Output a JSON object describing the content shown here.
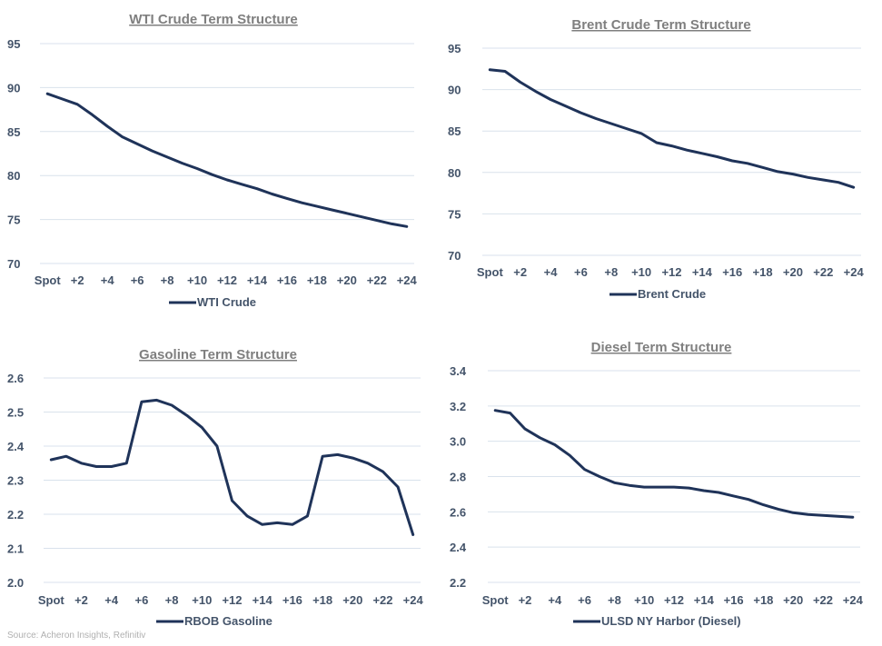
{
  "source": "Source: Acheron Insights, Refinitiv",
  "colors": {
    "line": "#1f3359",
    "grid": "#d9e2ec",
    "title": "#7f7f7f",
    "tick": "#44546a"
  },
  "x_ticks": [
    "Spot",
    "+2",
    "+4",
    "+6",
    "+8",
    "+10",
    "+12",
    "+14",
    "+16",
    "+18",
    "+20",
    "+22",
    "+24"
  ],
  "chart_data": [
    {
      "type": "line",
      "title": "WTI Crude Term Structure",
      "legend": "WTI Crude",
      "legend_position": "bottom",
      "grid": true,
      "ylim": [
        70,
        95
      ],
      "yticks": [
        70,
        75,
        80,
        85,
        90,
        95
      ],
      "x": [
        "Spot",
        "+1",
        "+2",
        "+3",
        "+4",
        "+5",
        "+6",
        "+7",
        "+8",
        "+9",
        "+10",
        "+11",
        "+12",
        "+13",
        "+14",
        "+15",
        "+16",
        "+17",
        "+18",
        "+19",
        "+20",
        "+21",
        "+22",
        "+23",
        "+24"
      ],
      "series": [
        {
          "name": "WTI Crude",
          "values": [
            89.3,
            88.7,
            88.1,
            86.9,
            85.6,
            84.4,
            83.6,
            82.8,
            82.1,
            81.4,
            80.8,
            80.1,
            79.5,
            79.0,
            78.5,
            77.9,
            77.4,
            76.9,
            76.5,
            76.1,
            75.7,
            75.3,
            74.9,
            74.5,
            74.2
          ]
        }
      ]
    },
    {
      "type": "line",
      "title": "Brent Crude Term Structure",
      "legend": "Brent Crude",
      "legend_position": "bottom",
      "grid": true,
      "ylim": [
        70,
        95
      ],
      "yticks": [
        70,
        75,
        80,
        85,
        90,
        95
      ],
      "x": [
        "Spot",
        "+1",
        "+2",
        "+3",
        "+4",
        "+5",
        "+6",
        "+7",
        "+8",
        "+9",
        "+10",
        "+11",
        "+12",
        "+13",
        "+14",
        "+15",
        "+16",
        "+17",
        "+18",
        "+19",
        "+20",
        "+21",
        "+22",
        "+23",
        "+24"
      ],
      "series": [
        {
          "name": "Brent Crude",
          "values": [
            92.4,
            92.2,
            90.9,
            89.8,
            88.8,
            88.0,
            87.2,
            86.5,
            85.9,
            85.3,
            84.7,
            83.6,
            83.2,
            82.7,
            82.3,
            81.9,
            81.4,
            81.1,
            80.6,
            80.1,
            79.8,
            79.4,
            79.1,
            78.8,
            78.2
          ]
        }
      ]
    },
    {
      "type": "line",
      "title": "Gasoline Term Structure",
      "legend": "RBOB Gasoline",
      "legend_position": "bottom",
      "grid": true,
      "ylim": [
        2.0,
        2.6
      ],
      "yticks": [
        "2.0",
        "2.1",
        "2.2",
        "2.3",
        "2.4",
        "2.5",
        "2.6"
      ],
      "x": [
        "Spot",
        "+1",
        "+2",
        "+3",
        "+4",
        "+5",
        "+6",
        "+7",
        "+8",
        "+9",
        "+10",
        "+11",
        "+12",
        "+13",
        "+14",
        "+15",
        "+16",
        "+17",
        "+18",
        "+19",
        "+20",
        "+21",
        "+22",
        "+23",
        "+24"
      ],
      "series": [
        {
          "name": "RBOB Gasoline",
          "values": [
            2.36,
            2.37,
            2.35,
            2.34,
            2.34,
            2.35,
            2.53,
            2.535,
            2.52,
            2.49,
            2.455,
            2.4,
            2.24,
            2.195,
            2.17,
            2.175,
            2.17,
            2.195,
            2.37,
            2.375,
            2.365,
            2.35,
            2.325,
            2.28,
            2.14
          ]
        }
      ]
    },
    {
      "type": "line",
      "title": "Diesel Term Structure",
      "legend": "ULSD NY Harbor (Diesel)",
      "legend_position": "bottom",
      "grid": true,
      "ylim": [
        2.2,
        3.4
      ],
      "yticks": [
        "2.2",
        "2.4",
        "2.6",
        "2.8",
        "3.0",
        "3.2",
        "3.4"
      ],
      "x": [
        "Spot",
        "+1",
        "+2",
        "+3",
        "+4",
        "+5",
        "+6",
        "+7",
        "+8",
        "+9",
        "+10",
        "+11",
        "+12",
        "+13",
        "+14",
        "+15",
        "+16",
        "+17",
        "+18",
        "+19",
        "+20",
        "+21",
        "+22",
        "+23",
        "+24"
      ],
      "series": [
        {
          "name": "ULSD NY Harbor (Diesel)",
          "values": [
            3.175,
            3.16,
            3.07,
            3.02,
            2.98,
            2.92,
            2.84,
            2.8,
            2.765,
            2.75,
            2.74,
            2.74,
            2.74,
            2.735,
            2.72,
            2.71,
            2.69,
            2.67,
            2.64,
            2.615,
            2.595,
            2.585,
            2.58,
            2.575,
            2.57
          ]
        }
      ]
    }
  ]
}
